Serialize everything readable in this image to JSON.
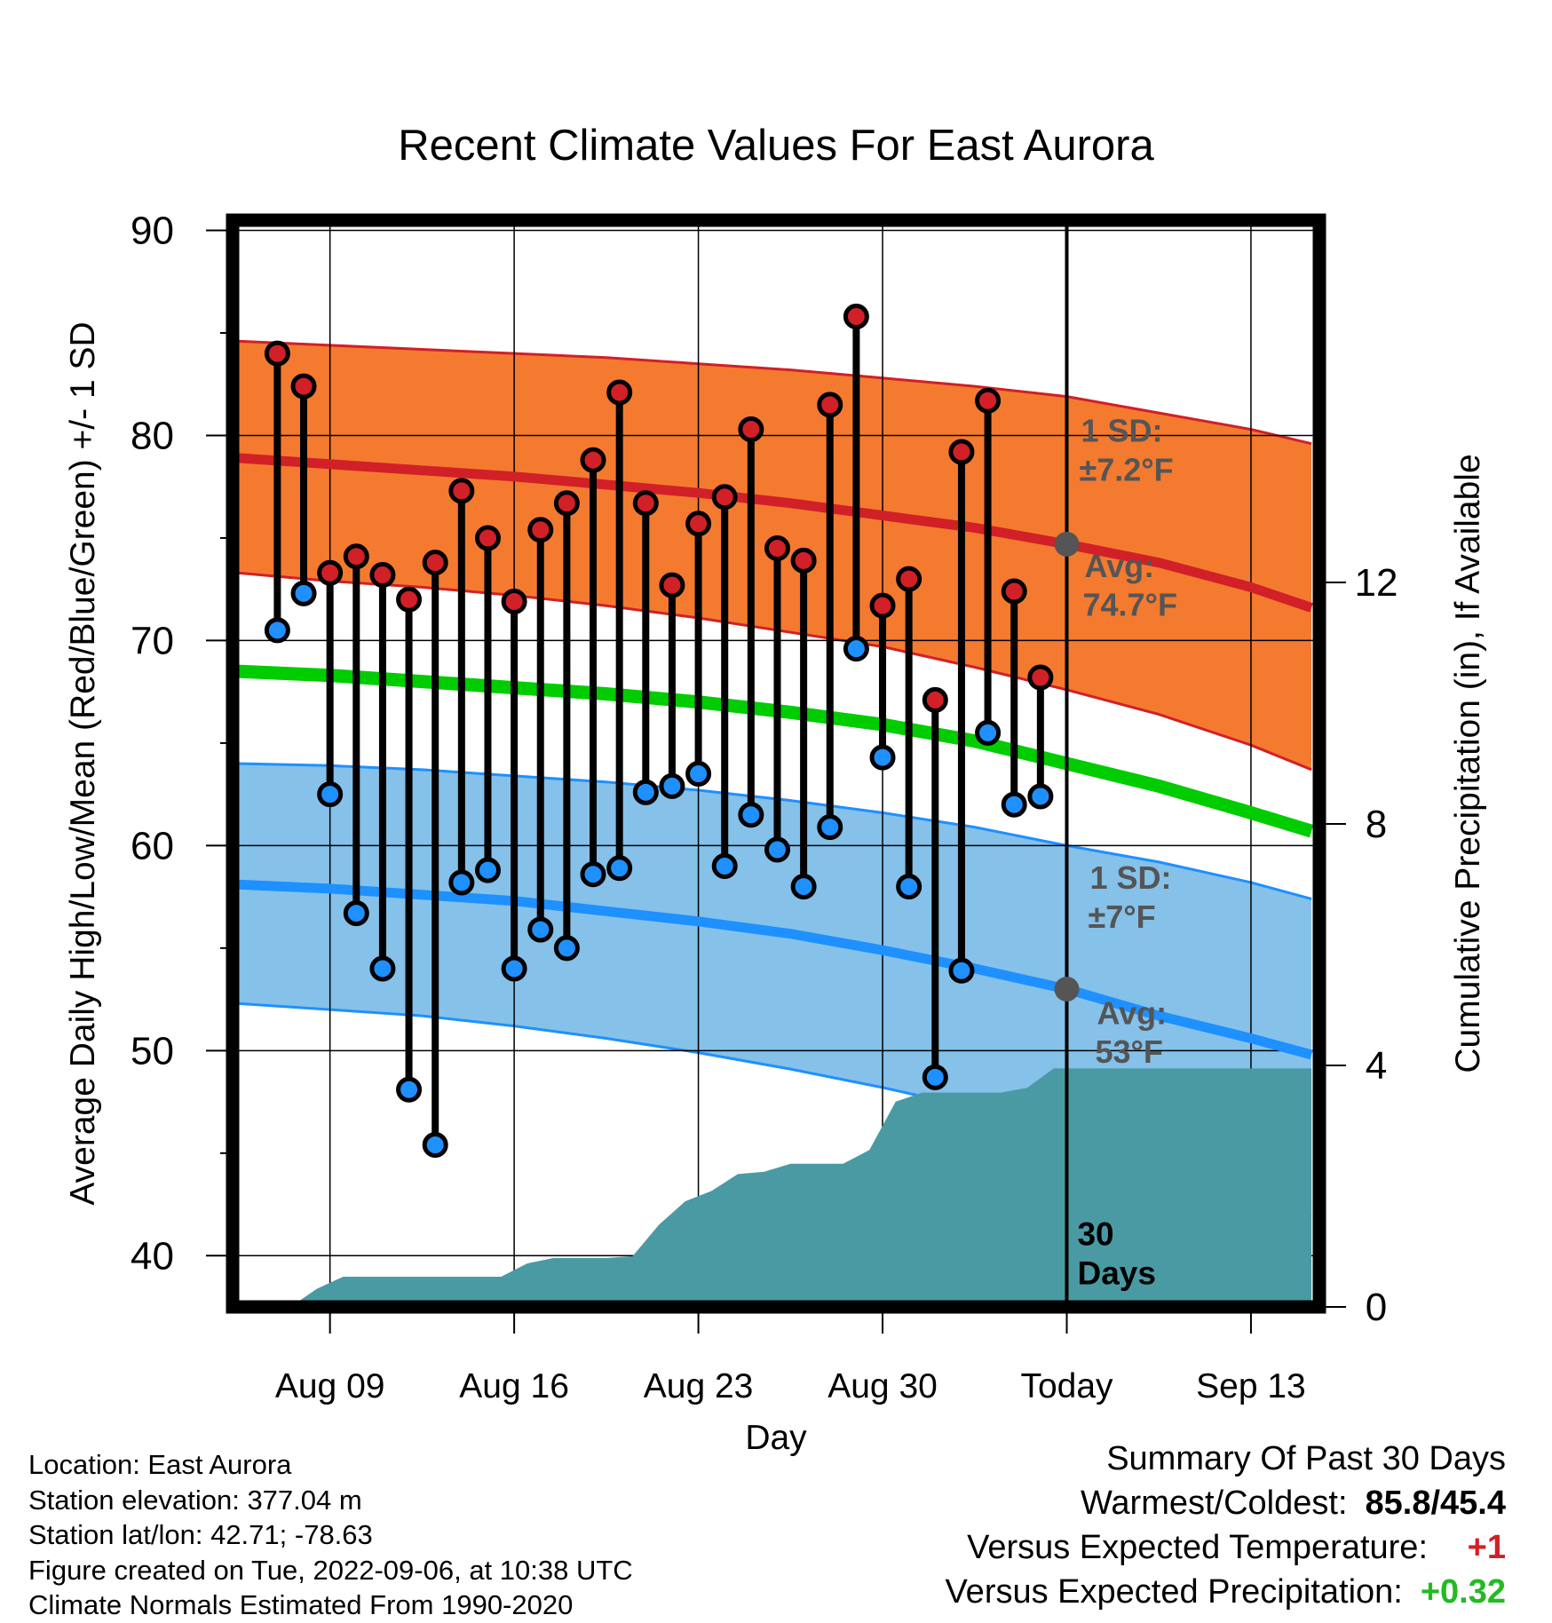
{
  "chart_data": {
    "type": "line",
    "title": "Recent Climate Values For East Aurora",
    "xlabel": "Day",
    "ylabel": "Average Daily High/Low/Mean (Red/Blue/Green) +/- 1 SD",
    "y2label": "Cumulative Precipitation (in), If Available",
    "ylim": [
      37.5,
      90.5
    ],
    "y2lim": [
      0,
      18
    ],
    "yticks": [
      "90",
      "80",
      "70",
      "60",
      "50",
      "40"
    ],
    "y2ticks": [
      "0",
      "4",
      "8",
      "12"
    ],
    "x_start": "2022-08-06",
    "xlim": [
      -0.7,
      40.6
    ],
    "xticks": [
      {
        "x": 3,
        "label": "Aug 09"
      },
      {
        "x": 10,
        "label": "Aug 16"
      },
      {
        "x": 17,
        "label": "Aug 23"
      },
      {
        "x": 24,
        "label": "Aug 30"
      },
      {
        "x": 31,
        "label": "Today"
      },
      {
        "x": 38,
        "label": "Sep 13"
      }
    ],
    "today_x": 31,
    "days_label": "30 Days",
    "observed": {
      "days": [
        1,
        2,
        3,
        4,
        5,
        6,
        7,
        8,
        9,
        10,
        11,
        12,
        13,
        14,
        15,
        16,
        17,
        18,
        19,
        20,
        21,
        22,
        23,
        24,
        25,
        26,
        27,
        28,
        29,
        30
      ],
      "high": [
        84.0,
        82.4,
        73.3,
        74.1,
        73.2,
        72.0,
        73.8,
        77.3,
        75.0,
        71.9,
        75.4,
        76.7,
        78.8,
        82.1,
        76.7,
        72.7,
        75.7,
        77.0,
        80.3,
        74.5,
        73.9,
        81.5,
        85.8,
        71.7,
        73.0,
        67.1,
        79.2,
        81.7,
        72.4,
        68.2
      ],
      "low": [
        70.5,
        72.3,
        62.5,
        56.7,
        54.0,
        48.1,
        45.4,
        58.2,
        58.8,
        54.0,
        55.9,
        55.0,
        58.6,
        58.9,
        62.6,
        62.9,
        63.5,
        59.0,
        61.5,
        59.8,
        58.0,
        60.9,
        69.6,
        64.3,
        58.0,
        48.7,
        53.9,
        65.5,
        62.0,
        62.4
      ]
    },
    "normals": {
      "x": [
        -0.5,
        3,
        6.5,
        10,
        13.5,
        17,
        20.5,
        24,
        27.5,
        31,
        34.5,
        38,
        40.3
      ],
      "high_avg": [
        78.9,
        78.6,
        78.3,
        78.0,
        77.6,
        77.2,
        76.7,
        76.1,
        75.5,
        74.7,
        73.8,
        72.6,
        71.6
      ],
      "high_upper": [
        84.6,
        84.4,
        84.2,
        84.0,
        83.8,
        83.5,
        83.2,
        82.8,
        82.4,
        81.9,
        81.1,
        80.3,
        79.6
      ],
      "high_lower": [
        73.3,
        72.9,
        72.6,
        72.2,
        71.7,
        71.1,
        70.4,
        69.7,
        68.7,
        67.6,
        66.4,
        64.9,
        63.7
      ],
      "mean_avg": [
        68.5,
        68.3,
        68.0,
        67.7,
        67.4,
        67.0,
        66.5,
        65.9,
        65.1,
        64.0,
        62.9,
        61.6,
        60.7
      ],
      "low_avg": [
        58.1,
        57.9,
        57.6,
        57.3,
        56.8,
        56.3,
        55.7,
        54.9,
        54.0,
        53.0,
        51.7,
        50.6,
        49.8
      ],
      "low_upper": [
        64.0,
        63.9,
        63.7,
        63.4,
        63.1,
        62.7,
        62.2,
        61.6,
        60.9,
        60.0,
        59.2,
        58.2,
        57.4
      ],
      "low_lower": [
        52.3,
        52.0,
        51.7,
        51.2,
        50.6,
        49.9,
        49.1,
        48.2,
        47.2,
        45.9,
        44.4,
        42.9,
        41.9
      ]
    },
    "precip_cumulative": {
      "x": [
        0.5,
        1.5,
        2.5,
        3.5,
        4.5,
        5.5,
        6.5,
        7.5,
        8.5,
        9.5,
        10.5,
        11.5,
        12.5,
        13.5,
        14.5,
        15.5,
        16.5,
        17.5,
        18.5,
        19.5,
        20.5,
        21.5,
        22.5,
        23.5,
        24.5,
        25.5,
        26.5,
        27.5,
        28.5,
        29.5,
        30.5,
        40.3
      ],
      "y": [
        0.0,
        0.0,
        0.3,
        0.5,
        0.5,
        0.5,
        0.5,
        0.5,
        0.5,
        0.5,
        0.72,
        0.81,
        0.81,
        0.81,
        0.84,
        1.36,
        1.75,
        1.92,
        2.2,
        2.24,
        2.37,
        2.37,
        2.37,
        2.6,
        3.4,
        3.55,
        3.55,
        3.55,
        3.55,
        3.63,
        3.95,
        3.95
      ]
    },
    "annotations": {
      "high_sd_title": "1 SD:",
      "high_sd_value": "±7.2°F",
      "high_avg_title": "Avg:",
      "high_avg_value": "74.7°F",
      "low_sd_title": "1 SD:",
      "low_sd_value": "±7°F",
      "low_avg_title": "Avg:",
      "low_avg_value": "53°F",
      "today_high_avg": 74.7,
      "today_low_avg": 53.0
    },
    "colors": {
      "high_band": "#f47a30",
      "high_line": "#d12027",
      "mean_line": "#00cc00",
      "low_band": "#85c1e9",
      "low_line": "#1e90ff",
      "precip": "#4a9aa4",
      "annotation": "#555555",
      "high_marker": "#d12027",
      "low_marker": "#1e90ff"
    }
  },
  "info": {
    "location": "Location: East Aurora",
    "elevation": "Station elevation: 377.04 m",
    "latlon": "Station lat/lon: 42.71; -78.63",
    "created": "Figure created on Tue, 2022-09-06, at 10:38 UTC",
    "normals": "Climate Normals Estimated From 1990-2020"
  },
  "summary": {
    "title": "Summary Of Past 30 Days",
    "warm_cold_label": "Warmest/Coldest:",
    "warm_cold_value": "85.8/45.4",
    "temp_label": "Versus Expected Temperature:",
    "temp_value": "+1",
    "temp_color": "#d12027",
    "precip_label": "Versus Expected Precipitation:",
    "precip_value": "+0.32",
    "precip_color": "#22bb22"
  }
}
